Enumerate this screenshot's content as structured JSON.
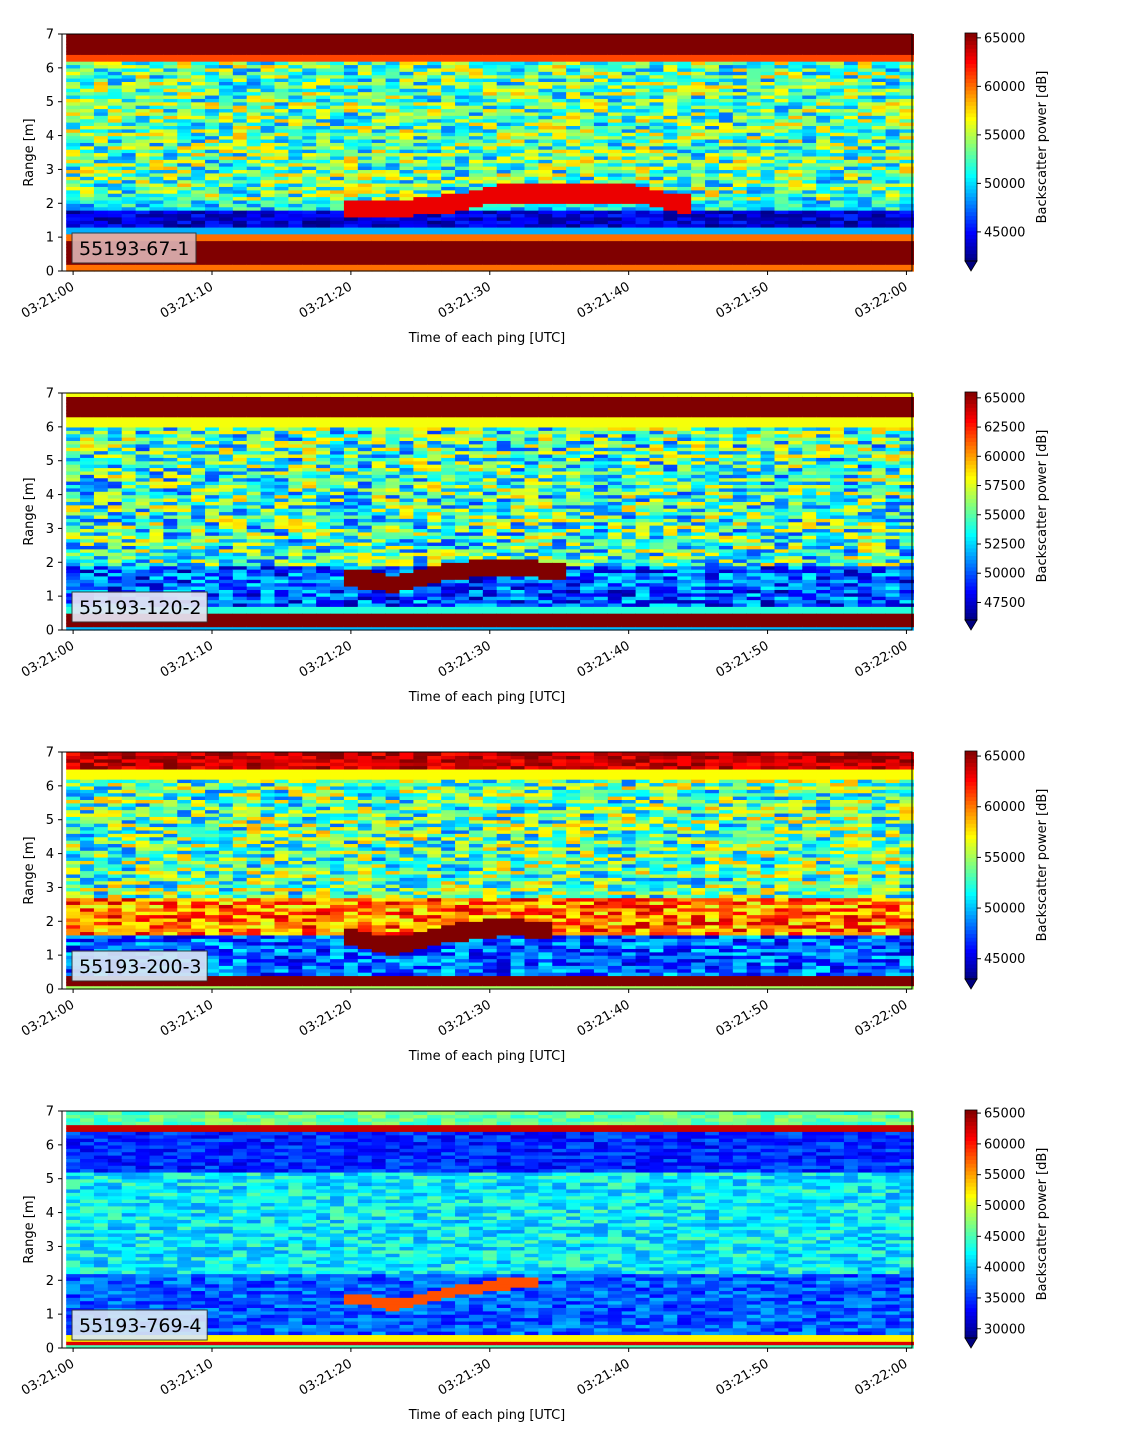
{
  "chart_data": [
    {
      "type": "heatmap",
      "label": "55193-67-1",
      "label_bg": "#dcb0b0",
      "xlabel": "Time of each ping [UTC]",
      "ylabel": "Range [m]",
      "xlim": [
        -0.8,
        60.4
      ],
      "ylim": [
        0,
        7
      ],
      "xticks": [
        "03:21:00",
        "03:21:10",
        "03:21:20",
        "03:21:30",
        "03:21:40",
        "03:21:50",
        "03:22:00"
      ],
      "yticks": [
        0,
        1,
        2,
        3,
        4,
        5,
        6,
        7
      ],
      "colorbar_label": "Backscatter power [dB]",
      "clim": [
        42000,
        65500
      ],
      "colorbar_ticks": [
        45000,
        50000,
        55000,
        60000,
        65000
      ],
      "bands": [
        {
          "y0": 6.4,
          "y1": 7.0,
          "value": 65500
        },
        {
          "y0": 6.2,
          "y1": 6.4,
          "value": 61000
        },
        {
          "y0": 2.1,
          "y1": 6.2,
          "value": 53000,
          "noise": 5500
        },
        {
          "y0": 1.8,
          "y1": 2.1,
          "value": 50500,
          "noise": 3500
        },
        {
          "y0": 1.3,
          "y1": 1.8,
          "value": 44000,
          "noise": 2000
        },
        {
          "y0": 1.1,
          "y1": 1.3,
          "value": 49000
        },
        {
          "y0": 0.9,
          "y1": 1.1,
          "value": 60000
        },
        {
          "y0": 0.2,
          "y1": 0.9,
          "value": 65500
        },
        {
          "y0": 0.0,
          "y1": 0.2,
          "value": 60000
        }
      ],
      "feature": {
        "points": [
          [
            20,
            1.85
          ],
          [
            23,
            1.85
          ],
          [
            27,
            2.0
          ],
          [
            31,
            2.3
          ],
          [
            40,
            2.3
          ],
          [
            44,
            2.0
          ]
        ],
        "width": 0.25,
        "value": 63000
      }
    },
    {
      "type": "heatmap",
      "label": "55193-120-2",
      "label_bg": "#e6e6f5",
      "xlabel": "Time of each ping [UTC]",
      "ylabel": "Range [m]",
      "xlim": [
        -0.8,
        60.4
      ],
      "ylim": [
        0,
        7
      ],
      "xticks": [
        "03:21:00",
        "03:21:10",
        "03:21:20",
        "03:21:30",
        "03:21:40",
        "03:21:50",
        "03:22:00"
      ],
      "yticks": [
        0,
        1,
        2,
        3,
        4,
        5,
        6,
        7
      ],
      "colorbar_label": "Backscatter power [dB]",
      "clim": [
        46000,
        65500
      ],
      "colorbar_ticks": [
        47500,
        50000,
        52500,
        55000,
        57500,
        60000,
        62500,
        65000
      ],
      "bands": [
        {
          "y0": 6.9,
          "y1": 7.0,
          "value": 58000
        },
        {
          "y0": 6.3,
          "y1": 6.9,
          "value": 65500
        },
        {
          "y0": 6.0,
          "y1": 6.3,
          "value": 58000
        },
        {
          "y0": 1.9,
          "y1": 6.0,
          "value": 54500,
          "noise": 5000
        },
        {
          "y0": 0.7,
          "y1": 1.9,
          "value": 50000,
          "noise": 3500
        },
        {
          "y0": 0.5,
          "y1": 0.7,
          "value": 54000
        },
        {
          "y0": 0.1,
          "y1": 0.5,
          "value": 65500
        },
        {
          "y0": 0.0,
          "y1": 0.1,
          "value": 52000
        }
      ],
      "feature": {
        "points": [
          [
            20,
            1.55
          ],
          [
            23,
            1.4
          ],
          [
            27,
            1.75
          ],
          [
            31,
            1.9
          ],
          [
            35,
            1.75
          ]
        ],
        "width": 0.25,
        "value": 65500
      }
    },
    {
      "type": "heatmap",
      "label": "55193-200-3",
      "label_bg": "#d8e6f5",
      "xlabel": "Time of each ping [UTC]",
      "ylabel": "Range [m]",
      "xlim": [
        -0.8,
        60.4
      ],
      "ylim": [
        0,
        7
      ],
      "xticks": [
        "03:21:00",
        "03:21:10",
        "03:21:20",
        "03:21:30",
        "03:21:40",
        "03:21:50",
        "03:22:00"
      ],
      "yticks": [
        0,
        1,
        2,
        3,
        4,
        5,
        6,
        7
      ],
      "colorbar_label": "Backscatter power [dB]",
      "clim": [
        43000,
        65500
      ],
      "colorbar_ticks": [
        45000,
        50000,
        55000,
        60000,
        65000
      ],
      "bands": [
        {
          "y0": 6.5,
          "y1": 7.0,
          "value": 64000,
          "noise": 2000
        },
        {
          "y0": 6.2,
          "y1": 6.5,
          "value": 57000
        },
        {
          "y0": 2.7,
          "y1": 6.2,
          "value": 53500,
          "noise": 5500
        },
        {
          "y0": 1.6,
          "y1": 2.7,
          "value": 60000,
          "noise": 4000
        },
        {
          "y0": 0.4,
          "y1": 1.6,
          "value": 48000,
          "noise": 3500
        },
        {
          "y0": 0.1,
          "y1": 0.4,
          "value": 65500
        },
        {
          "y0": 0.0,
          "y1": 0.1,
          "value": 55000
        }
      ],
      "feature": {
        "points": [
          [
            20,
            1.55
          ],
          [
            23,
            1.3
          ],
          [
            27,
            1.65
          ],
          [
            31,
            1.85
          ],
          [
            34,
            1.75
          ]
        ],
        "width": 0.25,
        "value": 65500
      }
    },
    {
      "type": "heatmap",
      "label": "55193-769-4",
      "label_bg": "#d8e6f5",
      "xlabel": "Time of each ping [UTC]",
      "ylabel": "Range [m]",
      "xlim": [
        -0.8,
        60.4
      ],
      "ylim": [
        0,
        7
      ],
      "xticks": [
        "03:21:00",
        "03:21:10",
        "03:21:20",
        "03:21:30",
        "03:21:40",
        "03:21:50",
        "03:22:00"
      ],
      "yticks": [
        0,
        1,
        2,
        3,
        4,
        5,
        6,
        7
      ],
      "colorbar_label": "Backscatter power [dB]",
      "clim": [
        28500,
        65500
      ],
      "colorbar_ticks": [
        30000,
        35000,
        40000,
        45000,
        50000,
        55000,
        60000,
        65000
      ],
      "bands": [
        {
          "y0": 6.6,
          "y1": 7.0,
          "value": 46000,
          "noise": 3000
        },
        {
          "y0": 6.4,
          "y1": 6.6,
          "value": 63000
        },
        {
          "y0": 5.2,
          "y1": 6.4,
          "value": 34500,
          "noise": 3000
        },
        {
          "y0": 2.2,
          "y1": 5.2,
          "value": 42000,
          "noise": 4000
        },
        {
          "y0": 0.4,
          "y1": 2.2,
          "value": 36500,
          "noise": 3500
        },
        {
          "y0": 0.2,
          "y1": 0.4,
          "value": 52000
        },
        {
          "y0": 0.1,
          "y1": 0.2,
          "value": 62000
        },
        {
          "y0": 0.0,
          "y1": 0.1,
          "value": 45000
        }
      ],
      "feature": {
        "points": [
          [
            20,
            1.5
          ],
          [
            23,
            1.3
          ],
          [
            27,
            1.65
          ],
          [
            31,
            1.9
          ],
          [
            33,
            1.95
          ]
        ],
        "width": 0.15,
        "value": 58000
      }
    }
  ]
}
